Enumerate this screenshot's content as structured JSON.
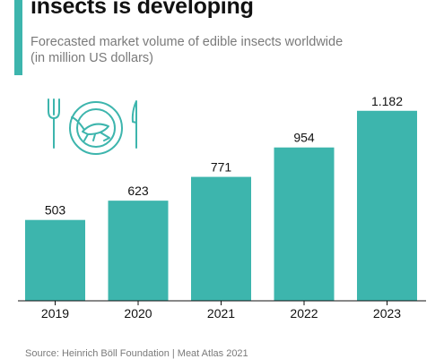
{
  "header": {
    "title": "insects is developing",
    "subtitle_line1": "Forecasted market volume of edible insects worldwide",
    "subtitle_line2": "(in million US dollars)"
  },
  "footer": {
    "source": "Source: Heinrich Böll Foundation | Meat Atlas 2021"
  },
  "colors": {
    "accent": "#3db5ad",
    "bar": "#3db5ad",
    "text": "#111111",
    "muted": "#7a7a7a"
  },
  "icon": "plate-fork-knife-cricket-icon",
  "chart_data": {
    "type": "bar",
    "categories": [
      "2019",
      "2020",
      "2021",
      "2022",
      "2023"
    ],
    "values": [
      503,
      623,
      771,
      954,
      1182
    ],
    "value_labels": [
      "503",
      "623",
      "771",
      "954",
      "1.182"
    ],
    "title": "insects is developing",
    "xlabel": "",
    "ylabel": "",
    "ylim": [
      0,
      1242
    ],
    "grid": false,
    "legend": "none"
  }
}
